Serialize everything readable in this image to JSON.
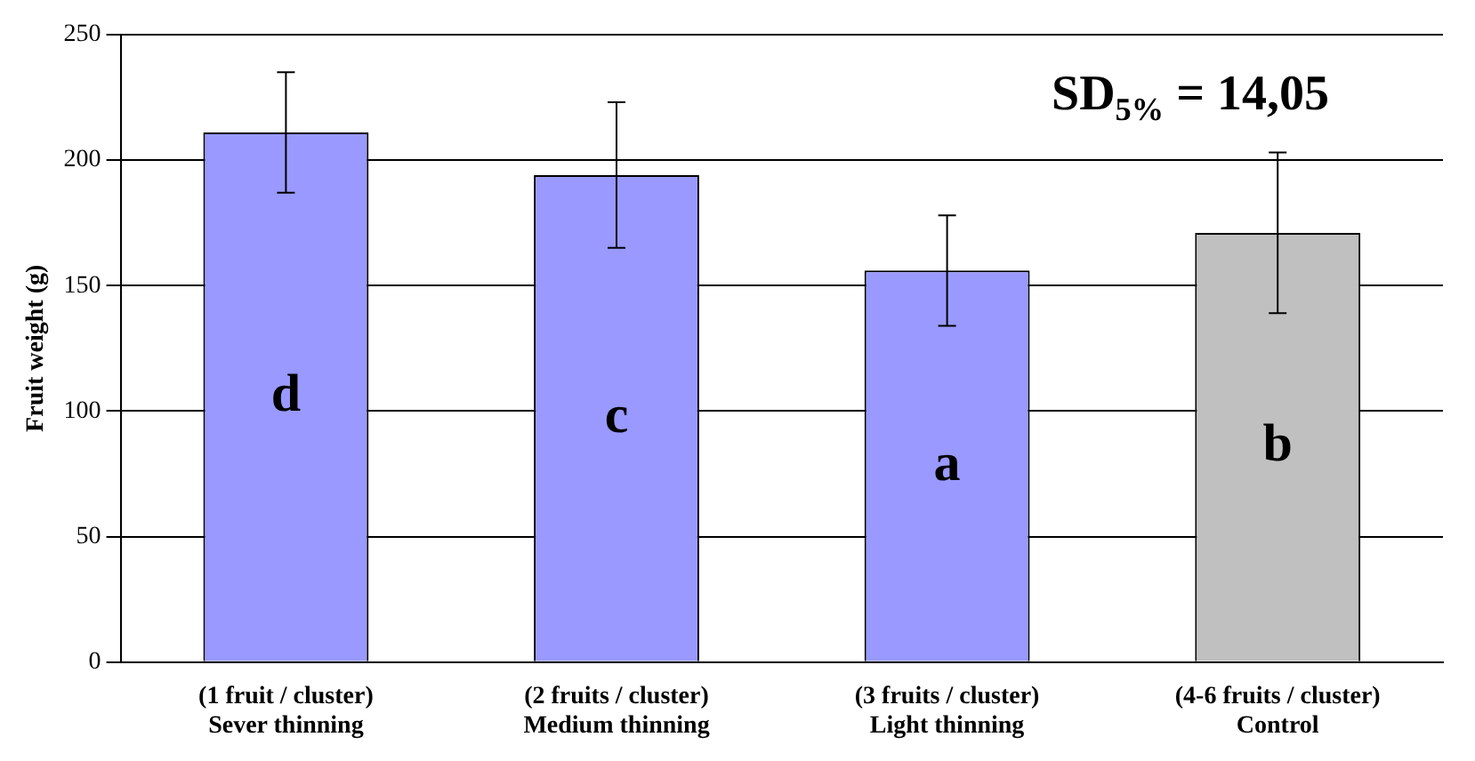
{
  "chart_data": {
    "type": "bar",
    "ylabel": "Fruit weight (g)",
    "categories": [
      "(1 fruit / cluster)\nSever thinning",
      "(2 fruits / cluster)\nMedium thinning",
      "(3 fruits / cluster)\nLight thinning",
      "(4-6 fruits / cluster)\nControl"
    ],
    "values": [
      211,
      194,
      156,
      171
    ],
    "colors": [
      "#9999ff",
      "#9999ff",
      "#9999ff",
      "#c0c0c0"
    ],
    "errors": [
      24,
      29,
      22,
      32
    ],
    "ylim": [
      0,
      250
    ],
    "yticks": [
      0,
      50,
      100,
      150,
      200,
      250
    ],
    "grid": "y",
    "legend": false,
    "annotations": [
      "d",
      "c",
      "a",
      "b",
      "SD$_{5%}$ = 14,05"
    ]
  }
}
